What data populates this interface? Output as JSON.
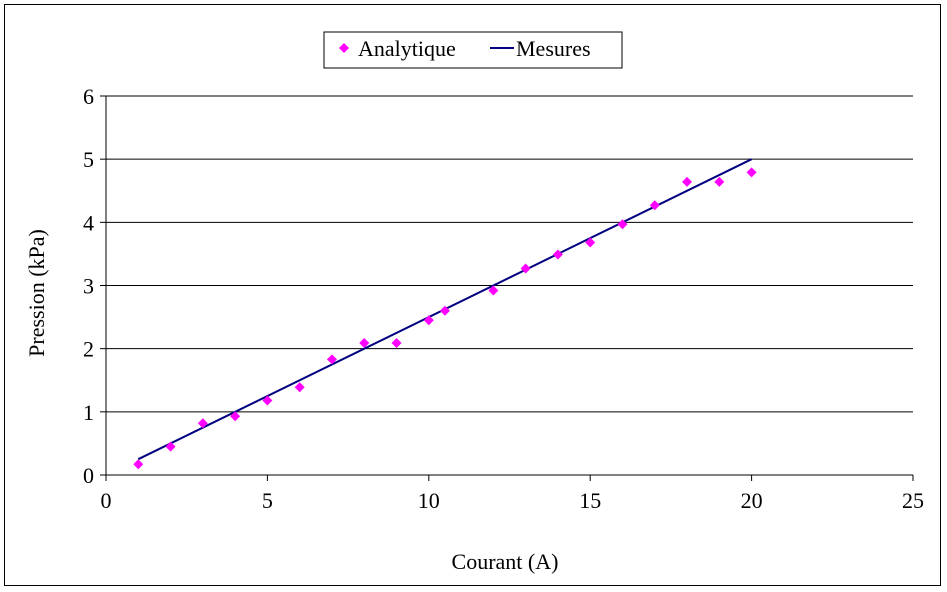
{
  "chart_data": {
    "type": "scatter",
    "title": "",
    "xlabel": "Courant (A)",
    "ylabel": "Pression (kPa)",
    "xlim": [
      0,
      25
    ],
    "ylim": [
      0,
      6
    ],
    "x_ticks": [
      "0",
      "5",
      "10",
      "15",
      "20",
      "25"
    ],
    "y_ticks": [
      "0",
      "1",
      "2",
      "3",
      "4",
      "5",
      "6"
    ],
    "grid": "horizontal",
    "legend_position": "top-center",
    "series": [
      {
        "name": "Analytique",
        "type": "scatter",
        "marker": "diamond",
        "color": "#ff00ff",
        "x": [
          1,
          2,
          3,
          4,
          5,
          6,
          7,
          8,
          9,
          10,
          10.5,
          12,
          13,
          14,
          15,
          16,
          17,
          18,
          19,
          20
        ],
        "y": [
          0.17,
          0.45,
          0.82,
          0.93,
          1.18,
          1.39,
          1.83,
          2.09,
          2.09,
          2.45,
          2.6,
          2.92,
          3.27,
          3.49,
          3.68,
          3.97,
          4.27,
          4.64,
          4.64,
          4.79
        ]
      },
      {
        "name": "Mesures",
        "type": "line",
        "color": "#000080",
        "x": [
          1,
          20
        ],
        "y": [
          0.25,
          5.0
        ]
      }
    ]
  }
}
